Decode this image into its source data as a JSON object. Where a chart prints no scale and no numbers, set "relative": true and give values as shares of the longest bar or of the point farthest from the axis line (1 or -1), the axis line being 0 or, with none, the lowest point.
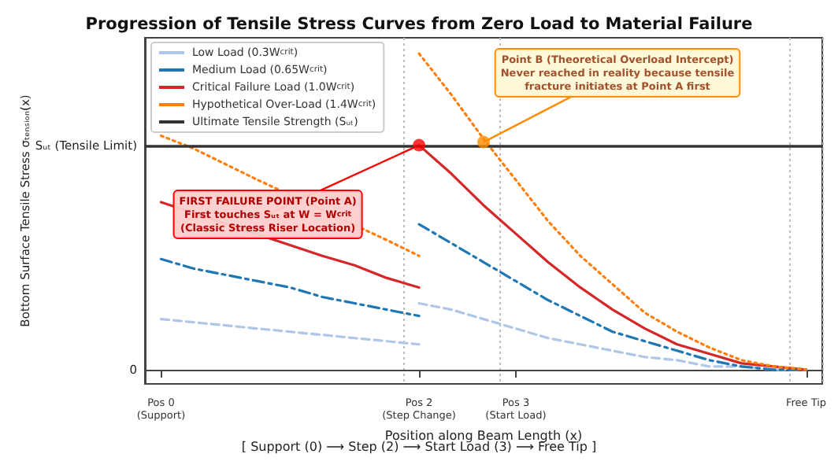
{
  "chart_data": {
    "type": "line",
    "title": "Progression of Tensile Stress Curves from Zero Load to Material Failure",
    "xlabel": "Position along Beam Length (x)",
    "relative": true,
    "categories": [
      "Pos 0\n(Support)",
      null,
      null,
      null,
      null,
      null,
      null,
      null,
      "Pos 2\n(Step Change)",
      null,
      null,
      "Pos 3\n(Start Load)",
      null,
      null,
      null,
      null,
      null,
      null,
      null,
      null,
      "Free Tip"
    ],
    "grid": "x",
    "legend": "top left",
    "marker": "none",
    "series": [
      {
        "name": "Low Load (0.3W$_{crit}$)",
        "color": "#aec7e8",
        "line_style": "dashed",
        "values": [
          0.16,
          0.15,
          0.14,
          0.13,
          0.12,
          0.11,
          0.1,
          0.09,
          0.08,
          null,
          null,
          null,
          null,
          null,
          null,
          null,
          null,
          null,
          null,
          null,
          null
        ]
      },
      {
        "color": "#aec7e8",
        "line_style": "dashed",
        "values": [
          null,
          null,
          null,
          null,
          null,
          null,
          null,
          null,
          0.21,
          0.19,
          0.16,
          0.13,
          0.1,
          0.08,
          0.06,
          0.04,
          0.03,
          0.01,
          0.01,
          0,
          0
        ]
      },
      {
        "name": "Medium Load (0.65W$_{crit}$)",
        "color": "#1f77b4",
        "line_style": "dashdot",
        "values": [
          0.35,
          0.32,
          0.3,
          0.28,
          0.26,
          0.23,
          0.21,
          0.19,
          0.17,
          null,
          null,
          null,
          null,
          null,
          null,
          null,
          null,
          null,
          null,
          null,
          null
        ]
      },
      {
        "color": "#1f77b4",
        "line_style": "dashdot",
        "values": [
          null,
          null,
          null,
          null,
          null,
          null,
          null,
          null,
          0.46,
          0.4,
          0.34,
          0.28,
          0.22,
          0.17,
          0.12,
          0.09,
          0.06,
          0.03,
          0.01,
          0,
          0
        ]
      },
      {
        "name": "Critical Failure Load (1.0W$_{crit}$)",
        "color": "#d62728",
        "line_style": "solid",
        "values": [
          0.53,
          null,
          null,
          null,
          null,
          0.36,
          0.33,
          0.29,
          0.26,
          null,
          null,
          null,
          null,
          null,
          null,
          null,
          null,
          null,
          null,
          null,
          null
        ]
      },
      {
        "color": "#d62728",
        "line_style": "solid",
        "values": [
          null,
          null,
          null,
          null,
          null,
          null,
          null,
          null,
          0.71,
          0.62,
          0.52,
          0.43,
          0.34,
          0.26,
          0.19,
          0.13,
          0.08,
          0.05,
          0.02,
          0.01,
          0
        ]
      },
      {
        "name": "Hypothetical Over-Load (1.4W$_{crit}$)",
        "color": "#ff7f0e",
        "line_style": "dotted",
        "values": [
          0.74,
          0.7,
          0.65,
          0.6,
          null,
          null,
          null,
          0.41,
          0.36,
          null,
          null,
          null,
          null,
          null,
          null,
          null,
          null,
          null,
          null,
          null,
          null
        ]
      },
      {
        "color": "#ff7f0e",
        "line_style": "dotted",
        "values": [
          null,
          null,
          null,
          null,
          null,
          null,
          null,
          null,
          1.0,
          0.87,
          0.73,
          0.6,
          0.47,
          0.36,
          0.27,
          0.18,
          0.12,
          0.07,
          0.03,
          0.01,
          0
        ]
      },
      {
        "type": "scatter",
        "color": "#ff0000",
        "marker": "circle",
        "values": [
          null,
          null,
          null,
          null,
          null,
          null,
          null,
          null,
          0.71,
          null,
          null,
          null,
          null,
          null,
          null,
          null,
          null,
          null,
          null,
          null,
          null
        ]
      },
      {
        "type": "scatter",
        "color": "#ff8c00",
        "marker": "circle",
        "values": [
          null,
          null,
          null,
          null,
          null,
          null,
          null,
          null,
          null,
          null,
          0.72,
          null,
          null,
          null,
          null,
          null,
          null,
          null,
          null,
          null,
          null
        ]
      }
    ],
    "ref_lines": [
      {
        "axis": "y",
        "value": 0.71,
        "label": "Ultimate Tensile Strength (Sᵤₜ)",
        "color": "#333333",
        "line_style": "solid"
      }
    ],
    "annotations": [
      {
        "text": "FIRST FAILURE POINT (Point A)\nFirst touches Sᵤₜ at W = W$_{crit}$\n(Classic Stress Riser Location)",
        "x": "Pos 2\n(Step Change)",
        "y": 0.71
      },
      "Point B (Theoretical Overload Intercept)\nNever reached in reality because tensile\nfracture initiates at Point A first",
      "Sᵤₜ (Tensile Limit)",
      "0",
      "[ Support (0) ⟶ Step (2) ⟶ Start Load (3) ⟶ Free Tip ]",
      "Bottom Surface Tensile Stress σₜₑₙₛᵢₒₙ(x)"
    ]
  }
}
